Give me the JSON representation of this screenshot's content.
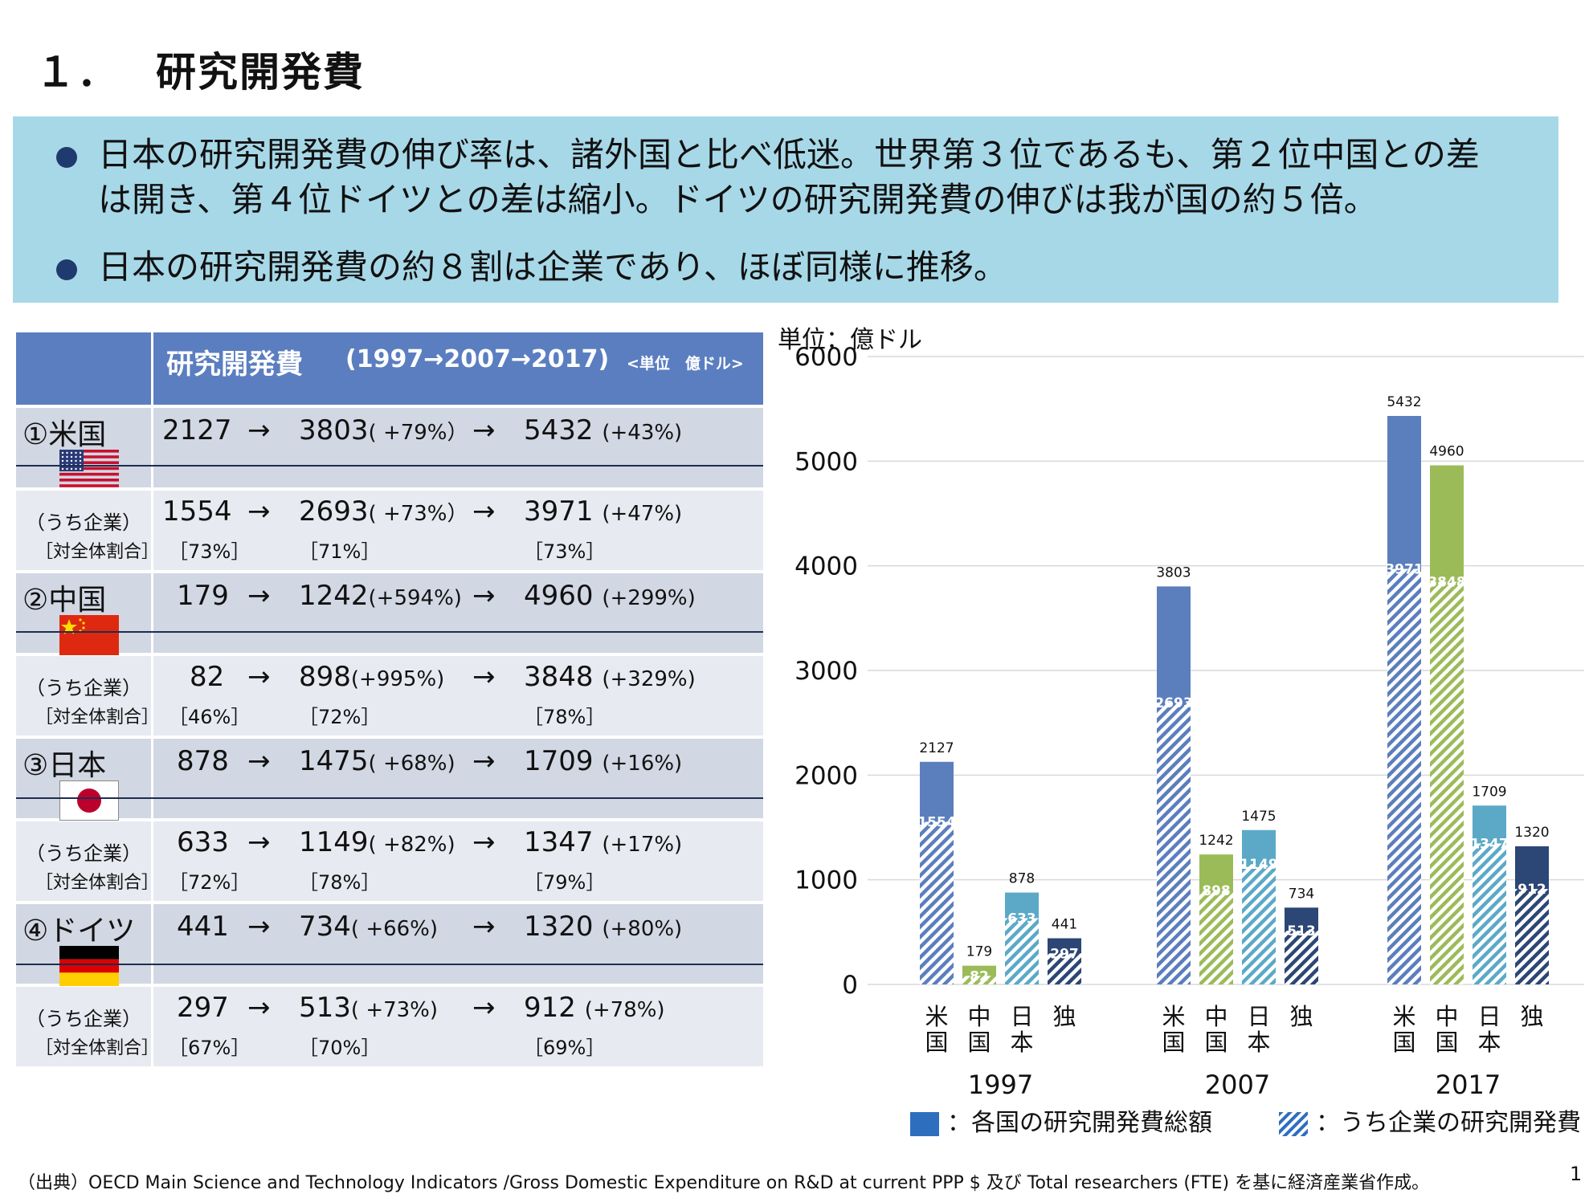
{
  "page": {
    "title_num": "１．",
    "title": "研究開発費",
    "bullets": [
      "日本の研究開発費の伸び率は、諸外国と比べ低迷。世界第３位であるも、第２位中国との差",
      "は開き、第４位ドイツとの差は縮小。ドイツの研究開発費の伸びは我が国の約５倍。",
      "日本の研究開発費の約８割は企業であり、ほぼ同様に推移。"
    ],
    "source": "（出典）OECD  Main Science and Technology Indicators /Gross Domestic Expenditure on R&D at current PPP $ 及び Total researchers (FTE) を基に経済産業省作成。",
    "page_number": "1"
  },
  "table": {
    "header_title": "研究開発費",
    "header_range": "(1997→2007→2017)",
    "header_unit": "<単位　億ドル>",
    "arrow": "→",
    "corp_label": "（うち企業）",
    "corp_share_label": "［対全体割合］",
    "countries": [
      {
        "name": "①米国",
        "flag": "us",
        "total": {
          "v1997": "2127",
          "v2007": "3803",
          "g2007": "( +79%）",
          "v2017": "5432",
          "g2017": "(+43%)"
        },
        "corp": {
          "v1997": "1554",
          "v2007": "2693",
          "g2007": "( +73%）",
          "v2017": "3971",
          "g2017": "(+47%)",
          "s1997": "［73%］",
          "s2007": "［71%］",
          "s2017": "［73%］"
        }
      },
      {
        "name": "②中国",
        "flag": "cn",
        "total": {
          "v1997": "179",
          "v2007": "1242",
          "g2007": "(+594%)",
          "v2017": "4960",
          "g2017": "(+299%)"
        },
        "corp": {
          "v1997": "82",
          "v2007": "898",
          "g2007": "(+995%)",
          "v2017": "3848",
          "g2017": "(+329%)",
          "s1997": "［46%］",
          "s2007": "［72%］",
          "s2017": "［78%］"
        }
      },
      {
        "name": "③日本",
        "flag": "jp",
        "total": {
          "v1997": "878",
          "v2007": "1475",
          "g2007": "( +68%)",
          "v2017": "1709",
          "g2017": "(+16%)"
        },
        "corp": {
          "v1997": "633",
          "v2007": "1149",
          "g2007": "( +82%)",
          "v2017": "1347",
          "g2017": "(+17%)",
          "s1997": "［72%］",
          "s2007": "［78%］",
          "s2017": "［79%］"
        }
      },
      {
        "name": "④ドイツ",
        "flag": "de",
        "total": {
          "v1997": "441",
          "v2007": "734",
          "g2007": "( +66%)",
          "v2017": "1320",
          "g2017": "(+80%)"
        },
        "corp": {
          "v1997": "297",
          "v2007": "513",
          "g2007": "( +73%)",
          "v2017": "912",
          "g2017": "(+78%)",
          "s1997": "［67%］",
          "s2007": "［70%］",
          "s2017": "［69%］"
        }
      }
    ]
  },
  "chart_data": {
    "type": "bar",
    "unit_label": "単位：億ドル",
    "groups": [
      "1997",
      "2007",
      "2017"
    ],
    "country_labels": [
      "米国",
      "中国",
      "日本",
      "独"
    ],
    "colors": {
      "米国": "#5b7ebd",
      "中国": "#9bbb59",
      "日本": "#5ba9c7",
      "独": "#2c4675"
    },
    "series": [
      {
        "name": "各国の研究開発費総額",
        "米国": [
          2127,
          3803,
          5432
        ],
        "中国": [
          179,
          1242,
          4960
        ],
        "日本": [
          878,
          1475,
          1709
        ],
        "独": [
          441,
          734,
          1320
        ]
      },
      {
        "name": "うち企業の研究開発費",
        "米国": [
          1554,
          2693,
          3971
        ],
        "中国": [
          82,
          898,
          3848
        ],
        "日本": [
          633,
          1149,
          1347
        ],
        "独": [
          297,
          513,
          912
        ]
      }
    ],
    "yticks": [
      0,
      1000,
      2000,
      3000,
      4000,
      5000,
      6000
    ],
    "ylim": [
      0,
      6000
    ],
    "grid": true,
    "legend": {
      "total": "：各国の研究開発費総額",
      "corp": "：うち企業の研究開発費",
      "position": "bottom"
    }
  }
}
